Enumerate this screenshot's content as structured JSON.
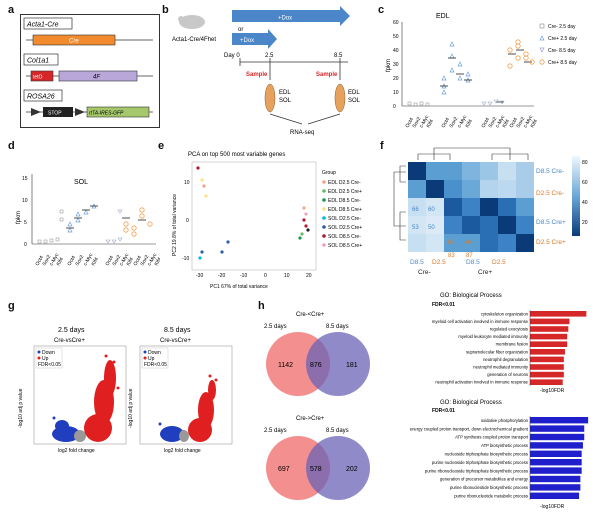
{
  "panel_labels": [
    "a",
    "b",
    "c",
    "d",
    "e",
    "f",
    "g",
    "h"
  ],
  "panel_a": {
    "constructs": [
      {
        "name": "Acta1-Cre",
        "box": "Cre"
      },
      {
        "name": "Col1a1",
        "box1": "tetO",
        "box2": "4F"
      },
      {
        "name": "ROSA26",
        "box1": "STOP",
        "box2": "rtTA-IRES-GFP"
      }
    ]
  },
  "panel_b": {
    "mouse_label": "Acta1-Cre/4Fhet",
    "arrow_top": "+Dox",
    "or": "or",
    "arrow_bottom": "+Dox",
    "days": [
      "Day 0",
      "2.5",
      "8.5"
    ],
    "sample": "Sample",
    "muscle_1": "EDL",
    "muscle_2": "SOL",
    "output": "RNA-seq"
  },
  "panel_c": {
    "title": "EDL",
    "ylabel": "fpkm",
    "yticks": [
      "0",
      "10",
      "20",
      "30",
      "40",
      "50",
      "60"
    ],
    "legend": [
      "Cre- 2.5 day",
      "Cre+ 2.5 day",
      "Cre- 8.5 day",
      "Cre+ 8.5 day"
    ],
    "genes": [
      "Oct4",
      "Sox2",
      "c-Myc",
      "Klf4"
    ]
  },
  "panel_d": {
    "title": "SOL",
    "ylabel": "fpkm",
    "yticks": [
      "0",
      "5",
      "10",
      "15"
    ],
    "genes": [
      "Oct4",
      "Sox2",
      "c-Myc",
      "Klf4"
    ]
  },
  "panel_e": {
    "title": "PCA on top 500 most variable genes",
    "xlabel": "PC1   67% of total variance",
    "ylabel": "PC2   19.8% of total variance",
    "xticks": [
      "-30",
      "-20",
      "-10",
      "0",
      "10",
      "20"
    ],
    "yticks": [
      "10",
      "0",
      "-10"
    ],
    "legend_title": "Group",
    "groups": [
      {
        "label": "EDL D2.5 Cre-",
        "color": "#f4a582"
      },
      {
        "label": "EDL D2.5 Cre+",
        "color": "#66bd63"
      },
      {
        "label": "EDL D8.5 Cre-",
        "color": "#1a9850"
      },
      {
        "label": "EDL D8.5 Cre+",
        "color": "#fee08b"
      },
      {
        "label": "SOL D2.5 Cre-",
        "color": "#00bcd4"
      },
      {
        "label": "SOL D2.5 Cre+",
        "color": "#2c5fa8"
      },
      {
        "label": "SOL D8.5 Cre-",
        "color": "#b2182b"
      },
      {
        "label": "SOL D8.5 Cre+",
        "color": "#f0a0c0"
      }
    ]
  },
  "panel_f": {
    "row_labels": [
      "D8.5 Cre-",
      "D2.5 Cre-",
      "D8.5 Cre+",
      "D2.5 Cre+"
    ],
    "col_labels": [
      "D8.5",
      "D2.5",
      "D8.5",
      "D2.5"
    ],
    "bottom_groups": [
      "Cre-",
      "Cre+"
    ],
    "numbers": [
      "66",
      "60",
      "53",
      "50",
      "61",
      "64",
      "83",
      "87"
    ],
    "scale": [
      "80",
      "60",
      "40",
      "20"
    ]
  },
  "panel_g": {
    "left": {
      "title": "2.5 days",
      "subtitle": "Cre-vsCre+",
      "xlabel": "log2 fold change",
      "ylabel": "-log10 adj p value"
    },
    "right": {
      "title": "8.5 days",
      "subtitle": "Cre-vsCre+",
      "xlabel": "log2 fold change",
      "ylabel": "-log10 adj p value"
    },
    "legend": [
      "Down",
      "Up",
      "FDR<0.05"
    ]
  },
  "panel_h": {
    "top": {
      "title": "Cre-<Cre+",
      "left": "2.5 days",
      "right": "8.5 days",
      "values": [
        "1142",
        "876",
        "181"
      ]
    },
    "bottom": {
      "title": "Cre->Cre+",
      "left": "2.5 days",
      "right": "8.5 days",
      "values": [
        "697",
        "578",
        "202"
      ]
    }
  },
  "go_up": {
    "title": "GO: Biological Process",
    "fdr": "FDR<0.01",
    "terms": [
      "cytoskeleton organization",
      "myeloid cell activation involved in immune response",
      "regulated exocytosis",
      "myeloid leukocyte mediated immunity",
      "membrane fusion",
      "supramolecular fiber organization",
      "neutrophil degranulation",
      "neutrophil mediated immunity",
      "generation of neurons",
      "neutrophil activation involved in immune response"
    ],
    "values": [
      5.0,
      3.5,
      3.4,
      3.3,
      3.3,
      3.1,
      3.0,
      3.0,
      3.0,
      2.9
    ],
    "xlabel": "-log10FDR",
    "color": "#d62728"
  },
  "go_down": {
    "title": "GO: Biological Process",
    "fdr": "FDR<0.01",
    "terms": [
      "oxidative phosphorylation",
      "energy coupled proton transport, down electrochemical gradient",
      "ATP synthesis coupled proton transport",
      "ATP biosynthetic process",
      "nucleoside triphosphate biosynthetic process",
      "purine nucleoside triphosphate biosynthetic process",
      "purine ribonucleoside triphosphate biosynthetic process",
      "generation of precursor metabolites and energy",
      "purine ribonucleotide biosynthetic process",
      "purine ribonucleotide metabolic process"
    ],
    "values": [
      45,
      42,
      42,
      41,
      40,
      40,
      40,
      39,
      39,
      38
    ],
    "xlabel": "-log10FDR",
    "color": "#1f1fcc"
  }
}
